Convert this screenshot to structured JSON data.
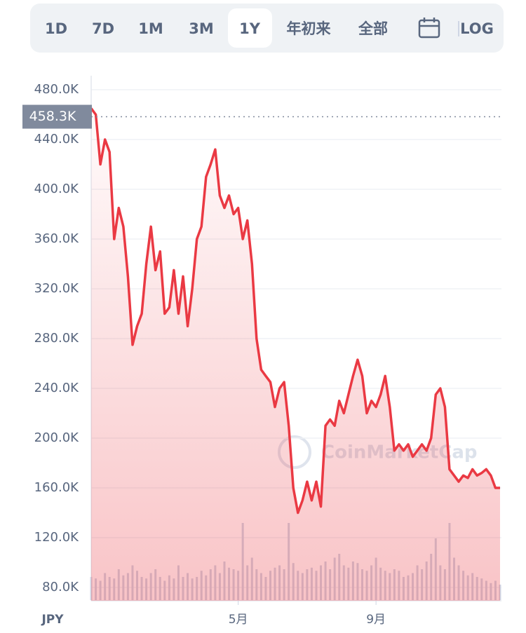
{
  "tabs": [
    "1D",
    "7D",
    "1M",
    "3M",
    "1Y",
    "年初来",
    "全部",
    "LOG"
  ],
  "selected_tab": "1Y",
  "chart_data": {
    "type": "line",
    "currency": "JPY",
    "watermark": "CoinMarketCap",
    "color": "#ea3943",
    "volume_color": "#cfd6e4",
    "categories": [
      null,
      null,
      null,
      null,
      null,
      null,
      null,
      null,
      null,
      null,
      null,
      null,
      null,
      null,
      null,
      null,
      null,
      null,
      null,
      null,
      null,
      null,
      null,
      null,
      null,
      null,
      null,
      null,
      null,
      null,
      null,
      null,
      "5月",
      null,
      null,
      null,
      null,
      null,
      null,
      null,
      null,
      null,
      null,
      null,
      null,
      null,
      null,
      null,
      null,
      null,
      null,
      null,
      null,
      null,
      null,
      null,
      null,
      null,
      null,
      null,
      null,
      null,
      "9月",
      null,
      null,
      null,
      null,
      null,
      null,
      null,
      null,
      null,
      null,
      null,
      null,
      null,
      null,
      null,
      null,
      null,
      null,
      null,
      null,
      null,
      null,
      null,
      null,
      null,
      null,
      null
    ],
    "values": [
      465000,
      460000,
      420000,
      440000,
      430000,
      360000,
      385000,
      370000,
      330000,
      275000,
      290000,
      300000,
      340000,
      370000,
      335000,
      350000,
      300000,
      305000,
      335000,
      300000,
      330000,
      290000,
      320000,
      360000,
      370000,
      410000,
      420000,
      432000,
      395000,
      385000,
      395000,
      380000,
      385000,
      360000,
      375000,
      340000,
      280000,
      255000,
      250000,
      245000,
      225000,
      240000,
      245000,
      210000,
      160000,
      140000,
      150000,
      165000,
      150000,
      165000,
      145000,
      210000,
      215000,
      210000,
      230000,
      220000,
      235000,
      250000,
      263000,
      250000,
      220000,
      230000,
      225000,
      235000,
      250000,
      225000,
      190000,
      195000,
      190000,
      195000,
      185000,
      190000,
      195000,
      190000,
      200000,
      235000,
      240000,
      225000,
      175000,
      170000,
      165000,
      170000,
      168000,
      175000,
      170000,
      172000,
      175000,
      170000,
      160000,
      160000
    ],
    "volume": [
      30,
      28,
      25,
      35,
      30,
      28,
      40,
      32,
      35,
      45,
      38,
      30,
      28,
      35,
      40,
      30,
      25,
      32,
      28,
      45,
      30,
      35,
      28,
      30,
      38,
      32,
      40,
      45,
      35,
      50,
      42,
      40,
      38,
      100,
      45,
      55,
      40,
      35,
      30,
      38,
      42,
      45,
      40,
      100,
      48,
      38,
      35,
      40,
      42,
      38,
      45,
      50,
      40,
      55,
      60,
      45,
      42,
      50,
      48,
      40,
      38,
      45,
      55,
      42,
      38,
      35,
      40,
      38,
      30,
      32,
      35,
      45,
      40,
      50,
      60,
      80,
      45,
      40,
      100,
      55,
      45,
      38,
      32,
      35,
      30,
      28,
      25,
      22,
      25,
      20
    ],
    "current_price": {
      "value": 458300,
      "label": "458.3K"
    },
    "ylim": [
      70000,
      490000
    ],
    "yticks": [
      {
        "value": 80000,
        "label": "80.0K"
      },
      {
        "value": 120000,
        "label": "120.0K"
      },
      {
        "value": 160000,
        "label": "160.0K"
      },
      {
        "value": 200000,
        "label": "200.0K"
      },
      {
        "value": 240000,
        "label": "240.0K"
      },
      {
        "value": 280000,
        "label": "280.0K"
      },
      {
        "value": 320000,
        "label": "320.0K"
      },
      {
        "value": 360000,
        "label": "360.0K"
      },
      {
        "value": 400000,
        "label": "400.0K"
      },
      {
        "value": 440000,
        "label": "440.0K"
      },
      {
        "value": 480000,
        "label": "480.0K"
      }
    ],
    "grid": true
  }
}
